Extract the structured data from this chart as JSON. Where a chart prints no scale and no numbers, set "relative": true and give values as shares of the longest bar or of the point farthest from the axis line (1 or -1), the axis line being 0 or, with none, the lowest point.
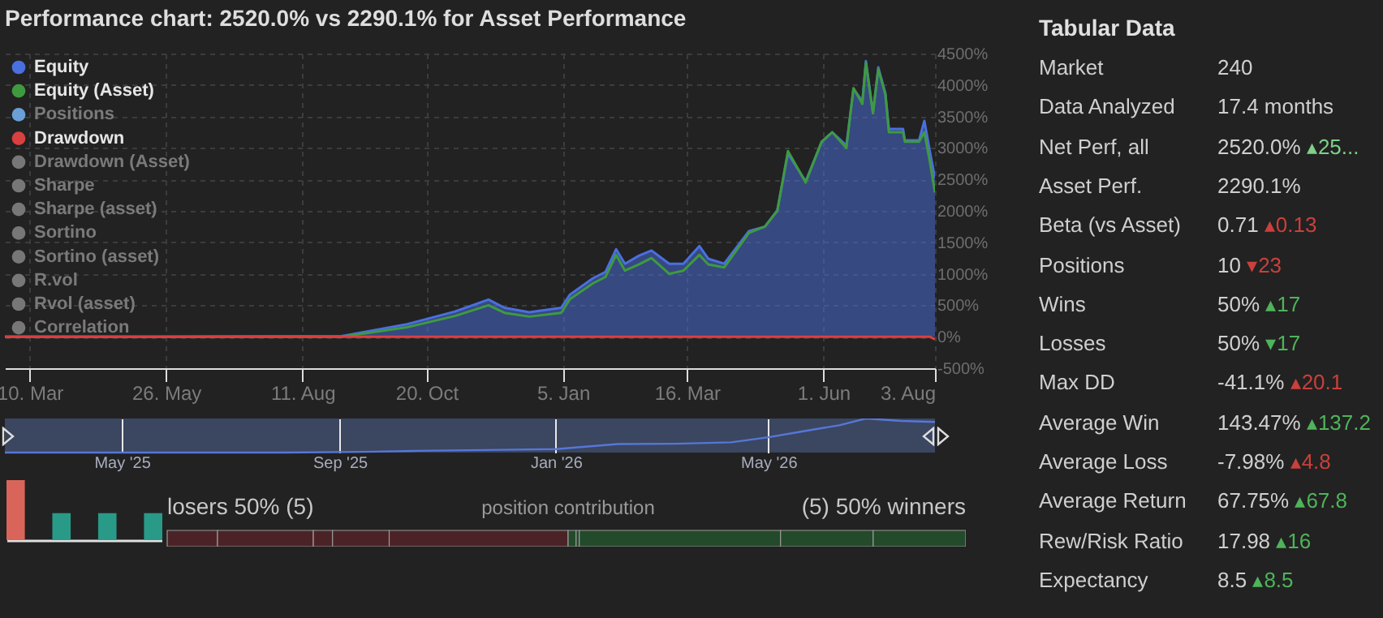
{
  "chart_data": [
    {
      "type": "area",
      "title": "Performance chart: 2520.0% vs 2290.1% for Asset Performance",
      "x": [
        "2025-02-24",
        "2025-05-24",
        "2025-09-02",
        "2025-10-09",
        "2025-11-05",
        "2025-11-24",
        "2025-12-03",
        "2025-12-17",
        "2026-01-04",
        "2026-01-09",
        "2026-01-22",
        "2026-01-29",
        "2026-02-04",
        "2026-02-09",
        "2026-02-17",
        "2026-02-24",
        "2026-03-06",
        "2026-03-14",
        "2026-03-23",
        "2026-03-28",
        "2026-04-06",
        "2026-04-20",
        "2026-04-29",
        "2026-05-06",
        "2026-05-12",
        "2026-05-22",
        "2026-05-31",
        "2026-06-06",
        "2026-06-14",
        "2026-06-18",
        "2026-06-23",
        "2026-06-25",
        "2026-06-29",
        "2026-07-02",
        "2026-07-06",
        "2026-07-08",
        "2026-07-16",
        "2026-07-17",
        "2026-07-25",
        "2026-07-28",
        "2026-07-31",
        "2026-08-03"
      ],
      "series": [
        {
          "name": "Equity",
          "color": "#4a6fe0",
          "values": [
            0,
            0,
            10,
            200,
            400,
            590,
            460,
            390,
            460,
            670,
            930,
            1030,
            1390,
            1160,
            1290,
            1370,
            1160,
            1160,
            1440,
            1240,
            1160,
            1680,
            1750,
            2010,
            2910,
            2470,
            3090,
            3250,
            3040,
            3940,
            3740,
            4380,
            3560,
            4280,
            3870,
            3300,
            3300,
            3120,
            3120,
            3430,
            2960,
            2520
          ]
        },
        {
          "name": "Equity (Asset)",
          "type": "line",
          "color": "#3f9a3f",
          "values": [
            0,
            0,
            0,
            150,
            330,
            500,
            380,
            320,
            380,
            600,
            850,
            950,
            1300,
            1050,
            1150,
            1250,
            1000,
            1050,
            1300,
            1150,
            1100,
            1650,
            1750,
            2000,
            2950,
            2450,
            3100,
            3250,
            3000,
            3950,
            3700,
            4350,
            3550,
            4250,
            3850,
            3250,
            3250,
            3100,
            3100,
            3250,
            2800,
            2290
          ]
        },
        {
          "name": "Positions",
          "type": "line",
          "color": "#6a9fd8",
          "values": [
            null,
            null,
            null,
            null,
            null,
            null,
            null,
            null,
            null,
            null,
            null,
            null,
            null,
            null,
            null,
            null,
            null,
            null,
            null,
            null,
            null,
            null,
            null,
            null,
            null,
            null,
            null,
            null,
            null,
            null,
            null,
            null,
            null,
            null,
            null,
            null,
            null,
            null,
            null,
            null,
            null,
            null
          ]
        },
        {
          "name": "Drawdown",
          "type": "line",
          "color": "#d94040",
          "values": [
            0,
            0,
            0,
            0,
            0,
            0,
            0,
            0,
            0,
            0,
            0,
            0,
            0,
            0,
            0,
            0,
            0,
            0,
            0,
            0,
            0,
            0,
            0,
            0,
            0,
            0,
            0,
            0,
            0,
            0,
            0,
            0,
            0,
            0,
            0,
            0,
            0,
            0,
            0,
            0,
            0,
            -41
          ]
        },
        {
          "name": "Drawdown (Asset)",
          "type": "line",
          "color": "#777777",
          "values": [
            null,
            null,
            null,
            null,
            null,
            null,
            null,
            null,
            null,
            null,
            null,
            null,
            null,
            null,
            null,
            null,
            null,
            null,
            null,
            null,
            null,
            null,
            null,
            null,
            null,
            null,
            null,
            null,
            null,
            null,
            null,
            null,
            null,
            null,
            null,
            null,
            null,
            null,
            null,
            null,
            null,
            null
          ]
        },
        {
          "name": "Sharpe",
          "type": "line",
          "color": "#777777",
          "values": [
            null,
            null,
            null,
            null,
            null,
            null,
            null,
            null,
            null,
            null,
            null,
            null,
            null,
            null,
            null,
            null,
            null,
            null,
            null,
            null,
            null,
            null,
            null,
            null,
            null,
            null,
            null,
            null,
            null,
            null,
            null,
            null,
            null,
            null,
            null,
            null,
            null,
            null,
            null,
            null,
            null,
            null
          ]
        },
        {
          "name": "Sharpe (asset)",
          "type": "line",
          "color": "#777777",
          "values": [
            null,
            null,
            null,
            null,
            null,
            null,
            null,
            null,
            null,
            null,
            null,
            null,
            null,
            null,
            null,
            null,
            null,
            null,
            null,
            null,
            null,
            null,
            null,
            null,
            null,
            null,
            null,
            null,
            null,
            null,
            null,
            null,
            null,
            null,
            null,
            null,
            null,
            null,
            null,
            null,
            null,
            null
          ]
        },
        {
          "name": "Sortino",
          "type": "line",
          "color": "#777777",
          "values": [
            null,
            null,
            null,
            null,
            null,
            null,
            null,
            null,
            null,
            null,
            null,
            null,
            null,
            null,
            null,
            null,
            null,
            null,
            null,
            null,
            null,
            null,
            null,
            null,
            null,
            null,
            null,
            null,
            null,
            null,
            null,
            null,
            null,
            null,
            null,
            null,
            null,
            null,
            null,
            null,
            null,
            null
          ]
        },
        {
          "name": "Sortino (asset)",
          "type": "line",
          "color": "#777777",
          "values": [
            null,
            null,
            null,
            null,
            null,
            null,
            null,
            null,
            null,
            null,
            null,
            null,
            null,
            null,
            null,
            null,
            null,
            null,
            null,
            null,
            null,
            null,
            null,
            null,
            null,
            null,
            null,
            null,
            null,
            null,
            null,
            null,
            null,
            null,
            null,
            null,
            null,
            null,
            null,
            null,
            null,
            null
          ]
        },
        {
          "name": "R.vol",
          "type": "line",
          "color": "#777777",
          "values": [
            null,
            null,
            null,
            null,
            null,
            null,
            null,
            null,
            null,
            null,
            null,
            null,
            null,
            null,
            null,
            null,
            null,
            null,
            null,
            null,
            null,
            null,
            null,
            null,
            null,
            null,
            null,
            null,
            null,
            null,
            null,
            null,
            null,
            null,
            null,
            null,
            null,
            null,
            null,
            null,
            null,
            null
          ]
        },
        {
          "name": "Rvol (asset)",
          "type": "line",
          "color": "#777777",
          "values": [
            null,
            null,
            null,
            null,
            null,
            null,
            null,
            null,
            null,
            null,
            null,
            null,
            null,
            null,
            null,
            null,
            null,
            null,
            null,
            null,
            null,
            null,
            null,
            null,
            null,
            null,
            null,
            null,
            null,
            null,
            null,
            null,
            null,
            null,
            null,
            null,
            null,
            null,
            null,
            null,
            null,
            null
          ]
        },
        {
          "name": "Correlation",
          "type": "line",
          "color": "#777777",
          "values": [
            null,
            null,
            null,
            null,
            null,
            null,
            null,
            null,
            null,
            null,
            null,
            null,
            null,
            null,
            null,
            null,
            null,
            null,
            null,
            null,
            null,
            null,
            null,
            null,
            null,
            null,
            null,
            null,
            null,
            null,
            null,
            null,
            null,
            null,
            null,
            null,
            null,
            null,
            null,
            null,
            null,
            null
          ]
        }
      ],
      "xlim": [
        "2025-02-24",
        "2026-08-03"
      ],
      "xticks": [
        {
          "value": "2025-03-10",
          "label": "10. Mar"
        },
        {
          "value": "2025-05-26",
          "label": "26. May"
        },
        {
          "value": "2025-08-11",
          "label": "11. Aug"
        },
        {
          "value": "2025-10-20",
          "label": "20. Oct"
        },
        {
          "value": "2026-01-05",
          "label": "5. Jan"
        },
        {
          "value": "2026-03-16",
          "label": "16. Mar"
        },
        {
          "value": "2026-06-01",
          "label": "1. Jun"
        },
        {
          "value": "2026-08-03",
          "label": "3. Aug"
        }
      ],
      "ylim": [
        -500,
        4500
      ],
      "yticks": [
        {
          "value": -500,
          "label": "-500%"
        },
        {
          "value": 0,
          "label": "0%"
        },
        {
          "value": 500,
          "label": "500%"
        },
        {
          "value": 1000,
          "label": "1000%"
        },
        {
          "value": 1500,
          "label": "1500%"
        },
        {
          "value": 2000,
          "label": "2000%"
        },
        {
          "value": 2500,
          "label": "2500%"
        },
        {
          "value": 3000,
          "label": "3000%"
        },
        {
          "value": 3500,
          "label": "3500%"
        },
        {
          "value": 4000,
          "label": "4000%"
        },
        {
          "value": 4500,
          "label": "4500%"
        }
      ],
      "grid": true,
      "legend": "top left"
    },
    {
      "type": "line",
      "relative": true,
      "x": [
        "2025-02-24",
        "2025-08-01",
        "2025-09-15",
        "2025-10-15",
        "2025-12-01",
        "2026-01-01",
        "2026-02-05",
        "2026-03-10",
        "2026-04-10",
        "2026-05-01",
        "2026-05-20",
        "2026-06-10",
        "2026-06-25",
        "2026-07-15",
        "2026-08-03"
      ],
      "series": [
        {
          "color": "#5677d8",
          "values": [
            0,
            0,
            0.02,
            0.05,
            0.08,
            0.1,
            0.25,
            0.26,
            0.3,
            0.45,
            0.62,
            0.8,
            1,
            0.93,
            0.9
          ]
        }
      ],
      "xlim": [
        "2025-02-24",
        "2026-08-03"
      ],
      "xticks": [
        {
          "value": "2025-05-01",
          "label": "May '25"
        },
        {
          "value": "2025-09-01",
          "label": "Sep '25"
        },
        {
          "value": "2026-01-01",
          "label": "Jan '26"
        },
        {
          "value": "2026-05-01",
          "label": "May '26"
        }
      ],
      "grid": "x"
    },
    {
      "type": "bar",
      "relative": true,
      "tick_labels": false,
      "categories": [
        null,
        null,
        null,
        null
      ],
      "values": [
        1,
        0.45,
        0.45,
        0.45
      ],
      "colors": [
        "#d9655a",
        "#2a9a88",
        "#2a9a88",
        "#2a9a88"
      ]
    },
    {
      "type": "bar",
      "relative": true,
      "stacked": true,
      "orientation": "horizontal",
      "tick_labels": false,
      "categories": [
        null
      ],
      "series": [
        {
          "color": "#4b2327",
          "values": [
            0.063
          ]
        },
        {
          "color": "#4b2327",
          "values": [
            0.12
          ]
        },
        {
          "color": "#4b2327",
          "values": [
            0.024
          ]
        },
        {
          "color": "#4b2327",
          "values": [
            0.071
          ]
        },
        {
          "color": "#4b2327",
          "values": [
            0.224
          ]
        },
        {
          "color": "#234a2a",
          "values": [
            0.01
          ]
        },
        {
          "color": "#234a2a",
          "values": [
            0.004
          ]
        },
        {
          "color": "#234a2a",
          "values": [
            0.252
          ]
        },
        {
          "color": "#234a2a",
          "values": [
            0.116
          ]
        },
        {
          "color": "#234a2a",
          "values": [
            0.116
          ]
        }
      ],
      "annotations": [
        "losers 50% (5)",
        "position contribution",
        "(5) 50% winners"
      ]
    },
    {
      "type": "other",
      "title": "Tabular Data",
      "categories": [
        "Market",
        "Data Analyzed",
        "Net Perf, all",
        "Asset Perf.",
        "Beta (vs Asset)",
        "Positions",
        "Wins",
        "Losses",
        "Max DD",
        "Average Win",
        "Average Loss",
        "Average Return",
        "Rew/Risk Ratio",
        "Expectancy"
      ],
      "value_labels": [
        "240",
        "17.4 months",
        "2520.0%",
        "2290.1%",
        "0.71",
        "10",
        "50%",
        "50%",
        "-41.1%",
        "143.47%",
        "-7.98%",
        "67.75%",
        "17.98",
        "8.5"
      ],
      "annotations": [
        null,
        null,
        "▴25...",
        null,
        "▴0.13",
        "▾23",
        "▴17",
        "▾17",
        "▴20.1",
        "▴137.2",
        "▴4.8",
        "▴67.8",
        "▴16",
        "▴8.5"
      ],
      "colors": [
        null,
        null,
        "#7fd08a",
        null,
        "#c9403c",
        "#c9403c",
        "#4fb35a",
        "#4fb35a",
        "#c9403c",
        "#4fb35a",
        "#c9403c",
        "#4fb35a",
        "#4fb35a",
        "#4fb35a"
      ]
    }
  ]
}
